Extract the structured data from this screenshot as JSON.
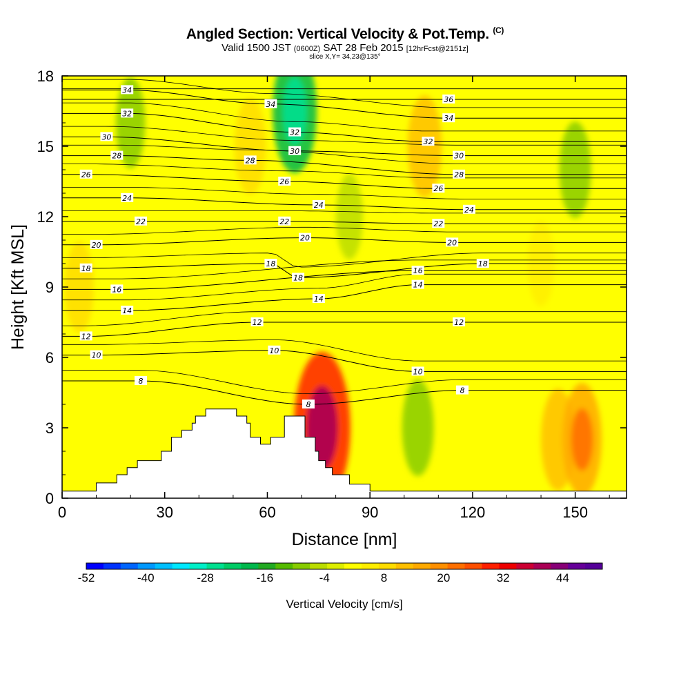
{
  "header": {
    "title": "Angled Section: Vertical Velocity & Pot.Temp.",
    "title_suffix": "(C)",
    "valid_pre": "Valid 1500 JST",
    "valid_utc": "(0600Z)",
    "valid_post": "SAT 28 Feb 2015",
    "forecast_info": "[12hrFcst@2151z]",
    "slice_info": "slice X,Y= 34,23@135°"
  },
  "chart_data": {
    "type": "heatmap",
    "xlabel": "Distance [nm]",
    "ylabel": "Height [Kft MSL]",
    "xlim": [
      0,
      165
    ],
    "ylim": [
      0,
      18
    ],
    "x_ticks": [
      0,
      30,
      60,
      90,
      120,
      150
    ],
    "y_ticks": [
      0,
      3,
      6,
      9,
      12,
      15,
      18
    ],
    "colorbar": {
      "label": "Vertical Velocity [cm/s]",
      "min": -52,
      "max": 52,
      "step": 4,
      "tick_labels": [
        "-52",
        "-40",
        "-28",
        "-16",
        "-4",
        "8",
        "20",
        "32",
        "44"
      ],
      "colors": [
        "#0000ff",
        "#0033ff",
        "#0066ff",
        "#0099ff",
        "#00c0ff",
        "#00e8ff",
        "#00f0c8",
        "#00e090",
        "#00cc66",
        "#00b84c",
        "#22aa22",
        "#55bb00",
        "#88cc00",
        "#bbdd00",
        "#ddee00",
        "#ffff00",
        "#ffee00",
        "#ffdd00",
        "#ffc000",
        "#ffaa00",
        "#ff9000",
        "#ff7000",
        "#ff5000",
        "#ff2000",
        "#ee0000",
        "#cc0033",
        "#aa0055",
        "#880077",
        "#660099",
        "#550099"
      ]
    },
    "velocity_field": {
      "description_units": "cm/s",
      "features": [
        {
          "x": 76,
          "y": 3.0,
          "value": 30
        },
        {
          "x": 68,
          "y": 16.5,
          "value": -20
        },
        {
          "x": 104,
          "y": 3.0,
          "value": -10
        },
        {
          "x": 106,
          "y": 15,
          "value": 12
        },
        {
          "x": 55,
          "y": 15,
          "value": 10
        },
        {
          "x": 5,
          "y": 9,
          "value": 8
        },
        {
          "x": 145,
          "y": 2.5,
          "value": 12
        },
        {
          "x": 152,
          "y": 2.5,
          "value": 16
        },
        {
          "x": 150,
          "y": 14,
          "value": -10
        },
        {
          "x": 20,
          "y": 16,
          "value": -8
        },
        {
          "x": 140,
          "y": 10,
          "value": 6
        },
        {
          "x": 84,
          "y": 12,
          "value": -6
        }
      ]
    },
    "isentropes": [
      {
        "theta": 8,
        "labels": [
          {
            "x": 23,
            "y": 5.0
          },
          {
            "x": 72,
            "y": 4.0
          },
          {
            "x": 117,
            "y": 4.6
          }
        ]
      },
      {
        "theta": 10,
        "labels": [
          {
            "x": 10,
            "y": 6.1
          },
          {
            "x": 62,
            "y": 6.3
          },
          {
            "x": 104,
            "y": 5.4
          }
        ]
      },
      {
        "theta": 12,
        "labels": [
          {
            "x": 7,
            "y": 6.9
          },
          {
            "x": 57,
            "y": 7.5
          },
          {
            "x": 116,
            "y": 7.5
          }
        ]
      },
      {
        "theta": 14,
        "labels": [
          {
            "x": 19,
            "y": 8.0
          },
          {
            "x": 75,
            "y": 8.5
          },
          {
            "x": 104,
            "y": 9.1
          }
        ]
      },
      {
        "theta": 16,
        "labels": [
          {
            "x": 16,
            "y": 8.9
          },
          {
            "x": 104,
            "y": 9.7
          }
        ]
      },
      {
        "theta": 18,
        "labels": [
          {
            "x": 7,
            "y": 9.8
          },
          {
            "x": 61,
            "y": 10.0
          },
          {
            "x": 69,
            "y": 9.4
          },
          {
            "x": 123,
            "y": 10.0
          }
        ]
      },
      {
        "theta": 20,
        "labels": [
          {
            "x": 10,
            "y": 10.8
          },
          {
            "x": 71,
            "y": 11.1
          },
          {
            "x": 114,
            "y": 10.9
          }
        ]
      },
      {
        "theta": 22,
        "labels": [
          {
            "x": 23,
            "y": 11.8
          },
          {
            "x": 65,
            "y": 11.8
          },
          {
            "x": 110,
            "y": 11.7
          }
        ]
      },
      {
        "theta": 24,
        "labels": [
          {
            "x": 19,
            "y": 12.8
          },
          {
            "x": 75,
            "y": 12.5
          },
          {
            "x": 119,
            "y": 12.3
          }
        ]
      },
      {
        "theta": 26,
        "labels": [
          {
            "x": 7,
            "y": 13.8
          },
          {
            "x": 65,
            "y": 13.5
          },
          {
            "x": 110,
            "y": 13.2
          }
        ]
      },
      {
        "theta": 28,
        "labels": [
          {
            "x": 16,
            "y": 14.6
          },
          {
            "x": 55,
            "y": 14.4
          },
          {
            "x": 116,
            "y": 13.8
          }
        ]
      },
      {
        "theta": 30,
        "labels": [
          {
            "x": 13,
            "y": 15.4
          },
          {
            "x": 68,
            "y": 14.8
          },
          {
            "x": 116,
            "y": 14.6
          }
        ]
      },
      {
        "theta": 32,
        "labels": [
          {
            "x": 19,
            "y": 16.4
          },
          {
            "x": 68,
            "y": 15.6
          },
          {
            "x": 107,
            "y": 15.2
          }
        ]
      },
      {
        "theta": 34,
        "labels": [
          {
            "x": 19,
            "y": 17.4
          },
          {
            "x": 61,
            "y": 16.8
          },
          {
            "x": 113,
            "y": 16.2
          }
        ]
      },
      {
        "theta": 36,
        "labels": [
          {
            "x": 113,
            "y": 17.0
          }
        ]
      }
    ],
    "terrain": [
      [
        0,
        0.3
      ],
      [
        10,
        0.3
      ],
      [
        10,
        0.65
      ],
      [
        16,
        0.65
      ],
      [
        16,
        1.0
      ],
      [
        19,
        1.0
      ],
      [
        19,
        1.3
      ],
      [
        22,
        1.3
      ],
      [
        22,
        1.6
      ],
      [
        25,
        1.6
      ],
      [
        29,
        1.6
      ],
      [
        29,
        2.0
      ],
      [
        32,
        2.0
      ],
      [
        32,
        2.6
      ],
      [
        35,
        2.6
      ],
      [
        35,
        2.9
      ],
      [
        38,
        2.9
      ],
      [
        38,
        3.2
      ],
      [
        39,
        3.2
      ],
      [
        39,
        3.5
      ],
      [
        42,
        3.5
      ],
      [
        42,
        3.8
      ],
      [
        51,
        3.8
      ],
      [
        51,
        3.5
      ],
      [
        54,
        3.5
      ],
      [
        54,
        3.2
      ],
      [
        55,
        3.2
      ],
      [
        55,
        2.6
      ],
      [
        58,
        2.6
      ],
      [
        58,
        2.3
      ],
      [
        61,
        2.3
      ],
      [
        61,
        2.6
      ],
      [
        65,
        2.6
      ],
      [
        65,
        3.5
      ],
      [
        71,
        3.5
      ],
      [
        71,
        2.6
      ],
      [
        74,
        2.6
      ],
      [
        74,
        2.0
      ],
      [
        75,
        2.0
      ],
      [
        75,
        1.6
      ],
      [
        77,
        1.6
      ],
      [
        77,
        1.3
      ],
      [
        79,
        1.3
      ],
      [
        79,
        1.0
      ],
      [
        84,
        1.0
      ],
      [
        84,
        0.6
      ],
      [
        90,
        0.6
      ],
      [
        90,
        0.3
      ],
      [
        165,
        0.3
      ]
    ]
  }
}
